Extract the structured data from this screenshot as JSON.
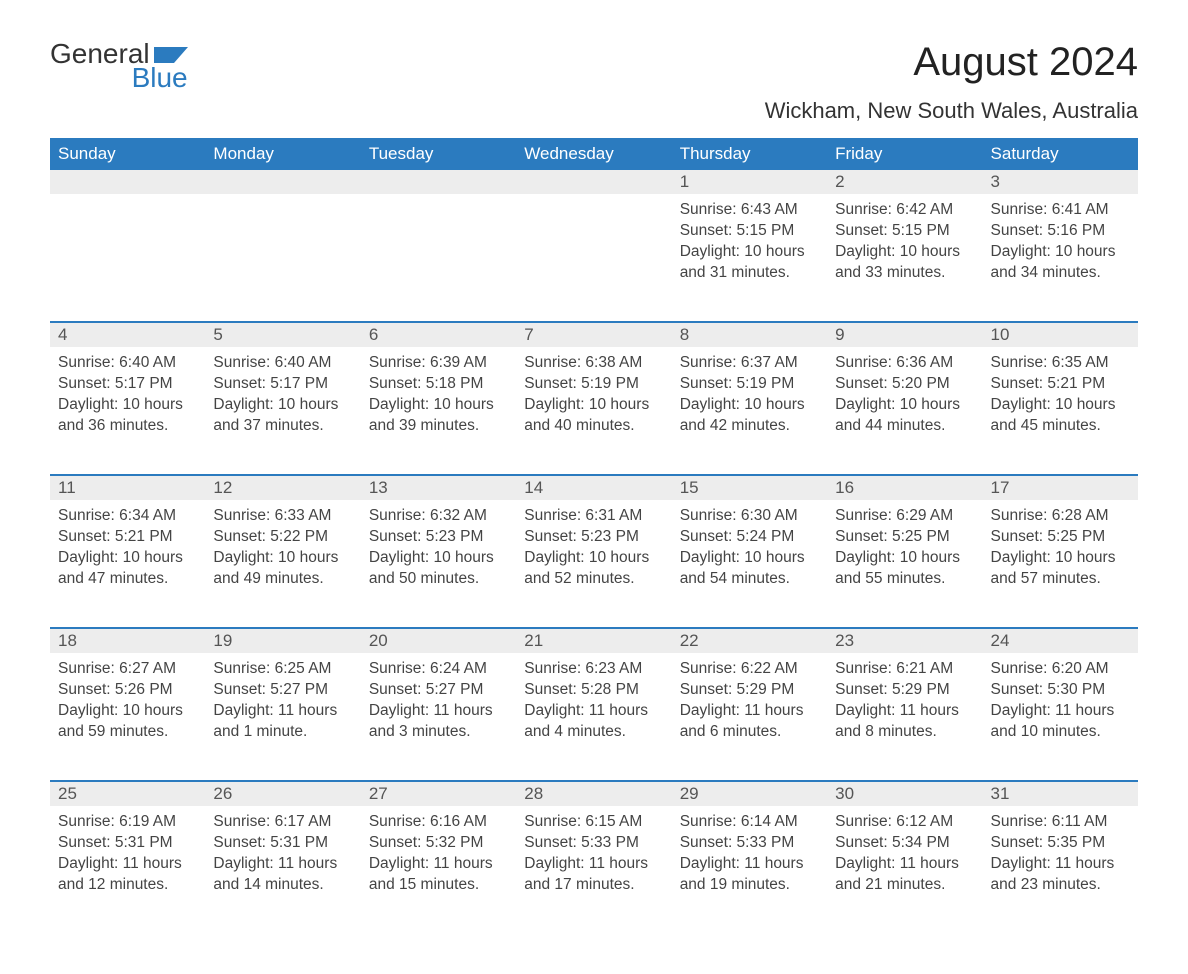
{
  "brand": {
    "word1": "General",
    "word2": "Blue",
    "shape_color": "#2b7bbf"
  },
  "title": "August 2024",
  "subtitle": "Wickham, New South Wales, Australia",
  "colors": {
    "header_bg": "#2b7bbf",
    "header_text": "#ffffff",
    "daynum_bg": "#ededed",
    "row_border": "#2b7bbf",
    "body_text": "#444444",
    "page_bg": "#ffffff"
  },
  "typography": {
    "title_fontsize": 40,
    "subtitle_fontsize": 22,
    "header_fontsize": 17,
    "daynum_fontsize": 17,
    "cell_fontsize": 15.5,
    "logo_fontsize": 28
  },
  "day_headers": [
    "Sunday",
    "Monday",
    "Tuesday",
    "Wednesday",
    "Thursday",
    "Friday",
    "Saturday"
  ],
  "labels": {
    "sunrise": "Sunrise:",
    "sunset": "Sunset:",
    "daylight": "Daylight:"
  },
  "weeks": [
    [
      null,
      null,
      null,
      null,
      {
        "n": "1",
        "sunrise": "6:43 AM",
        "sunset": "5:15 PM",
        "daylight": "10 hours and 31 minutes."
      },
      {
        "n": "2",
        "sunrise": "6:42 AM",
        "sunset": "5:15 PM",
        "daylight": "10 hours and 33 minutes."
      },
      {
        "n": "3",
        "sunrise": "6:41 AM",
        "sunset": "5:16 PM",
        "daylight": "10 hours and 34 minutes."
      }
    ],
    [
      {
        "n": "4",
        "sunrise": "6:40 AM",
        "sunset": "5:17 PM",
        "daylight": "10 hours and 36 minutes."
      },
      {
        "n": "5",
        "sunrise": "6:40 AM",
        "sunset": "5:17 PM",
        "daylight": "10 hours and 37 minutes."
      },
      {
        "n": "6",
        "sunrise": "6:39 AM",
        "sunset": "5:18 PM",
        "daylight": "10 hours and 39 minutes."
      },
      {
        "n": "7",
        "sunrise": "6:38 AM",
        "sunset": "5:19 PM",
        "daylight": "10 hours and 40 minutes."
      },
      {
        "n": "8",
        "sunrise": "6:37 AM",
        "sunset": "5:19 PM",
        "daylight": "10 hours and 42 minutes."
      },
      {
        "n": "9",
        "sunrise": "6:36 AM",
        "sunset": "5:20 PM",
        "daylight": "10 hours and 44 minutes."
      },
      {
        "n": "10",
        "sunrise": "6:35 AM",
        "sunset": "5:21 PM",
        "daylight": "10 hours and 45 minutes."
      }
    ],
    [
      {
        "n": "11",
        "sunrise": "6:34 AM",
        "sunset": "5:21 PM",
        "daylight": "10 hours and 47 minutes."
      },
      {
        "n": "12",
        "sunrise": "6:33 AM",
        "sunset": "5:22 PM",
        "daylight": "10 hours and 49 minutes."
      },
      {
        "n": "13",
        "sunrise": "6:32 AM",
        "sunset": "5:23 PM",
        "daylight": "10 hours and 50 minutes."
      },
      {
        "n": "14",
        "sunrise": "6:31 AM",
        "sunset": "5:23 PM",
        "daylight": "10 hours and 52 minutes."
      },
      {
        "n": "15",
        "sunrise": "6:30 AM",
        "sunset": "5:24 PM",
        "daylight": "10 hours and 54 minutes."
      },
      {
        "n": "16",
        "sunrise": "6:29 AM",
        "sunset": "5:25 PM",
        "daylight": "10 hours and 55 minutes."
      },
      {
        "n": "17",
        "sunrise": "6:28 AM",
        "sunset": "5:25 PM",
        "daylight": "10 hours and 57 minutes."
      }
    ],
    [
      {
        "n": "18",
        "sunrise": "6:27 AM",
        "sunset": "5:26 PM",
        "daylight": "10 hours and 59 minutes."
      },
      {
        "n": "19",
        "sunrise": "6:25 AM",
        "sunset": "5:27 PM",
        "daylight": "11 hours and 1 minute."
      },
      {
        "n": "20",
        "sunrise": "6:24 AM",
        "sunset": "5:27 PM",
        "daylight": "11 hours and 3 minutes."
      },
      {
        "n": "21",
        "sunrise": "6:23 AM",
        "sunset": "5:28 PM",
        "daylight": "11 hours and 4 minutes."
      },
      {
        "n": "22",
        "sunrise": "6:22 AM",
        "sunset": "5:29 PM",
        "daylight": "11 hours and 6 minutes."
      },
      {
        "n": "23",
        "sunrise": "6:21 AM",
        "sunset": "5:29 PM",
        "daylight": "11 hours and 8 minutes."
      },
      {
        "n": "24",
        "sunrise": "6:20 AM",
        "sunset": "5:30 PM",
        "daylight": "11 hours and 10 minutes."
      }
    ],
    [
      {
        "n": "25",
        "sunrise": "6:19 AM",
        "sunset": "5:31 PM",
        "daylight": "11 hours and 12 minutes."
      },
      {
        "n": "26",
        "sunrise": "6:17 AM",
        "sunset": "5:31 PM",
        "daylight": "11 hours and 14 minutes."
      },
      {
        "n": "27",
        "sunrise": "6:16 AM",
        "sunset": "5:32 PM",
        "daylight": "11 hours and 15 minutes."
      },
      {
        "n": "28",
        "sunrise": "6:15 AM",
        "sunset": "5:33 PM",
        "daylight": "11 hours and 17 minutes."
      },
      {
        "n": "29",
        "sunrise": "6:14 AM",
        "sunset": "5:33 PM",
        "daylight": "11 hours and 19 minutes."
      },
      {
        "n": "30",
        "sunrise": "6:12 AM",
        "sunset": "5:34 PM",
        "daylight": "11 hours and 21 minutes."
      },
      {
        "n": "31",
        "sunrise": "6:11 AM",
        "sunset": "5:35 PM",
        "daylight": "11 hours and 23 minutes."
      }
    ]
  ]
}
